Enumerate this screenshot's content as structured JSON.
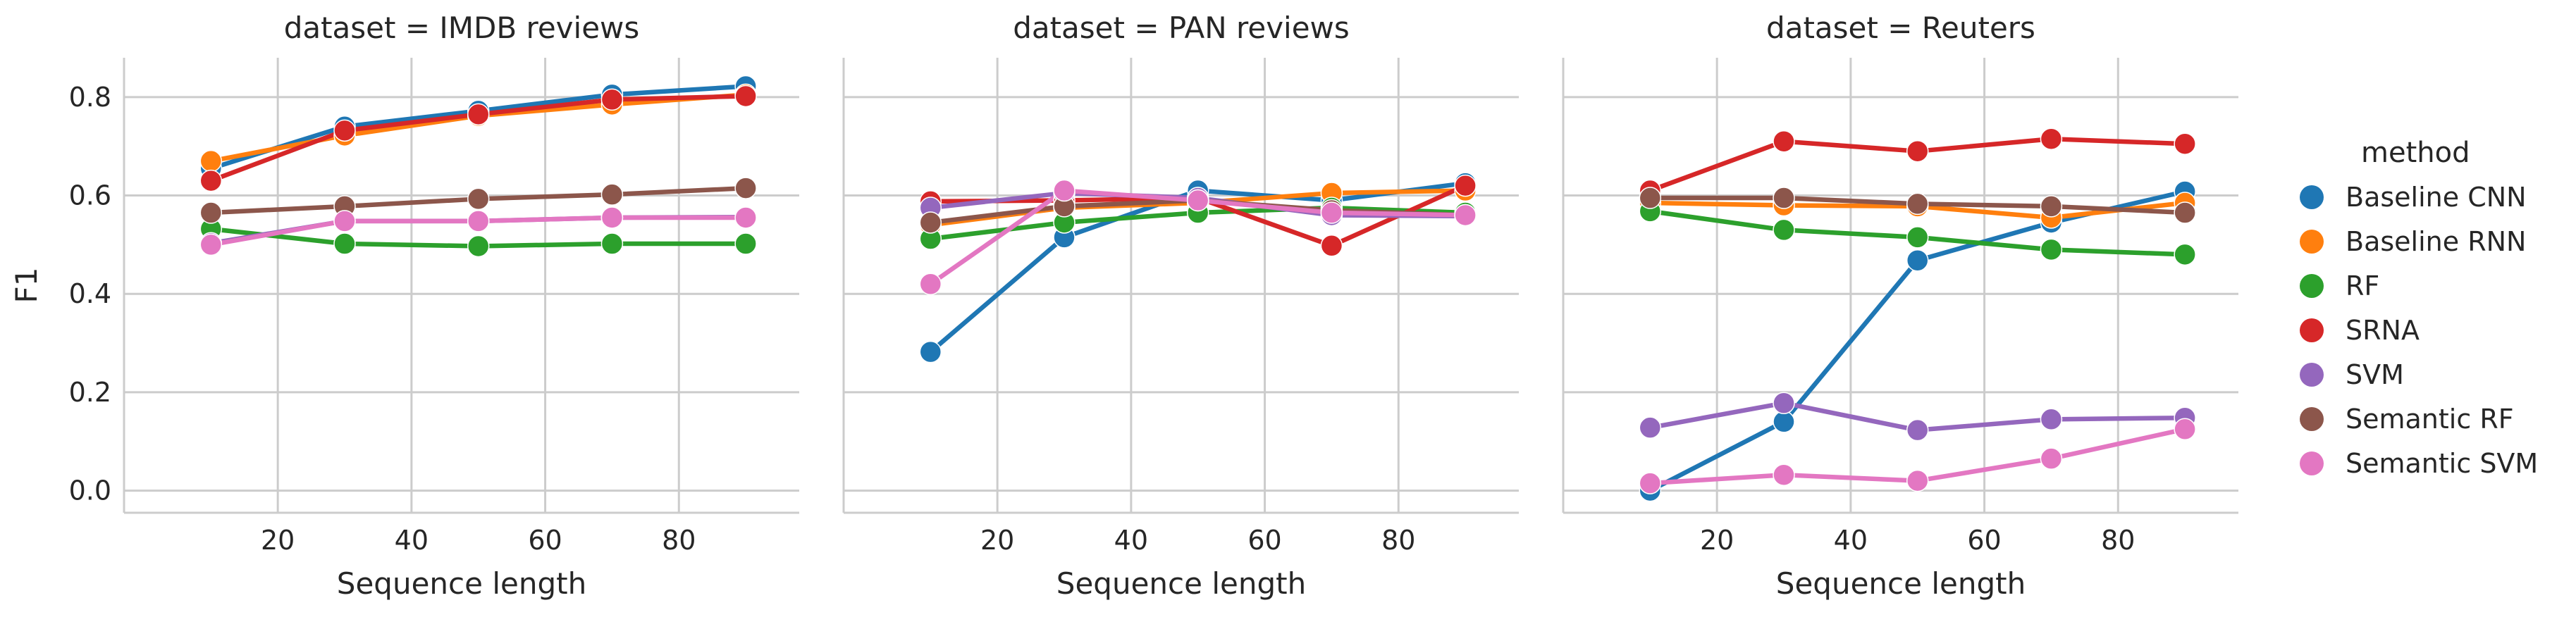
{
  "chart_data": {
    "type": "line",
    "xlabel": "Sequence length",
    "ylabel": "F1",
    "x": [
      10,
      30,
      50,
      70,
      90
    ],
    "xticks": [
      20,
      40,
      60,
      80
    ],
    "xlim": [
      -3,
      98
    ],
    "yticks": [
      0.0,
      0.2,
      0.4,
      0.6,
      0.8
    ],
    "ylim": [
      -0.045,
      0.88
    ],
    "grid": true,
    "legend": {
      "title": "method",
      "placement": "right",
      "entries": [
        {
          "name": "Baseline CNN",
          "color": "#1f77b4"
        },
        {
          "name": "Baseline RNN",
          "color": "#ff7f0e"
        },
        {
          "name": "RF",
          "color": "#2ca02c"
        },
        {
          "name": "SRNA",
          "color": "#d62728"
        },
        {
          "name": "SVM",
          "color": "#9467bd"
        },
        {
          "name": "Semantic RF",
          "color": "#8c564b"
        },
        {
          "name": "Semantic SVM",
          "color": "#e377c2"
        }
      ]
    },
    "facets": [
      {
        "title": "dataset = IMDB reviews",
        "series": [
          {
            "name": "Baseline CNN",
            "values": [
              0.655,
              0.74,
              0.772,
              0.805,
              0.822
            ]
          },
          {
            "name": "Baseline RNN",
            "values": [
              0.67,
              0.722,
              0.762,
              0.785,
              0.805
            ]
          },
          {
            "name": "RF",
            "values": [
              0.532,
              0.502,
              0.497,
              0.502,
              0.502
            ]
          },
          {
            "name": "SRNA",
            "values": [
              0.63,
              0.732,
              0.765,
              0.795,
              0.802
            ]
          },
          {
            "name": "SVM",
            "values": [
              0.503,
              0.548,
              0.548,
              0.555,
              0.556
            ]
          },
          {
            "name": "Semantic RF",
            "values": [
              0.565,
              0.578,
              0.593,
              0.602,
              0.615
            ]
          },
          {
            "name": "Semantic SVM",
            "values": [
              0.5,
              0.548,
              0.548,
              0.555,
              0.555
            ]
          }
        ]
      },
      {
        "title": "dataset = PAN reviews",
        "series": [
          {
            "name": "Baseline CNN",
            "values": [
              0.282,
              0.515,
              0.61,
              0.59,
              0.625
            ]
          },
          {
            "name": "Baseline RNN",
            "values": [
              0.54,
              0.575,
              0.585,
              0.605,
              0.61
            ]
          },
          {
            "name": "RF",
            "values": [
              0.512,
              0.545,
              0.565,
              0.575,
              0.565
            ]
          },
          {
            "name": "SRNA",
            "values": [
              0.588,
              0.59,
              0.595,
              0.498,
              0.62
            ]
          },
          {
            "name": "SVM",
            "values": [
              0.575,
              0.605,
              0.595,
              0.56,
              0.558
            ]
          },
          {
            "name": "Semantic RF",
            "values": [
              0.545,
              0.578,
              0.59,
              0.57,
              0.56
            ]
          },
          {
            "name": "Semantic SVM",
            "values": [
              0.42,
              0.61,
              0.59,
              0.565,
              0.56
            ]
          }
        ]
      },
      {
        "title": "dataset = Reuters",
        "series": [
          {
            "name": "Baseline CNN",
            "values": [
              0.0,
              0.14,
              0.468,
              0.545,
              0.608
            ]
          },
          {
            "name": "Baseline RNN",
            "values": [
              0.585,
              0.58,
              0.578,
              0.555,
              0.585
            ]
          },
          {
            "name": "RF",
            "values": [
              0.568,
              0.53,
              0.515,
              0.49,
              0.48
            ]
          },
          {
            "name": "SRNA",
            "values": [
              0.61,
              0.71,
              0.69,
              0.715,
              0.705
            ]
          },
          {
            "name": "SVM",
            "values": [
              0.128,
              0.178,
              0.123,
              0.145,
              0.148
            ]
          },
          {
            "name": "Semantic RF",
            "values": [
              0.595,
              0.595,
              0.583,
              0.578,
              0.565
            ]
          },
          {
            "name": "Semantic SVM",
            "values": [
              0.015,
              0.032,
              0.02,
              0.065,
              0.125
            ]
          }
        ]
      }
    ]
  }
}
